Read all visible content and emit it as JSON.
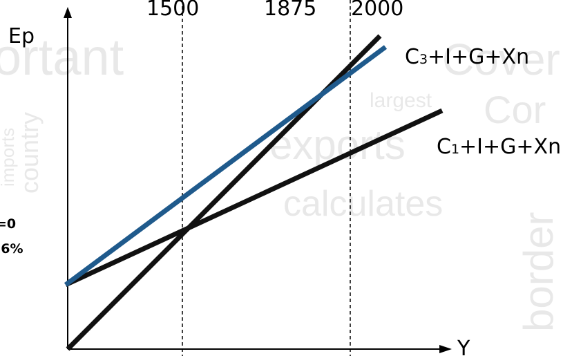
{
  "background_words": [
    "ortant",
    "Cover",
    "Cor",
    "exports",
    "calculates",
    "border",
    "country",
    "imports",
    "largest"
  ],
  "axes": {
    "y_label": "Ep",
    "x_label": "Y"
  },
  "ticks": [
    "1500",
    "1875",
    "2000"
  ],
  "lines": {
    "upper_label_base": "C",
    "upper_label_sub": "3",
    "upper_label_rest": "+I+G+Xn",
    "lower_label_base": "C",
    "lower_label_sub": "1",
    "lower_label_rest": "+I+G+Xn"
  },
  "side_notes": [
    "=0",
    ",6%"
  ],
  "colors": {
    "blue_line": "#1f5a8c",
    "black_line": "#111111",
    "bg_word": "#e8e8e8"
  }
}
